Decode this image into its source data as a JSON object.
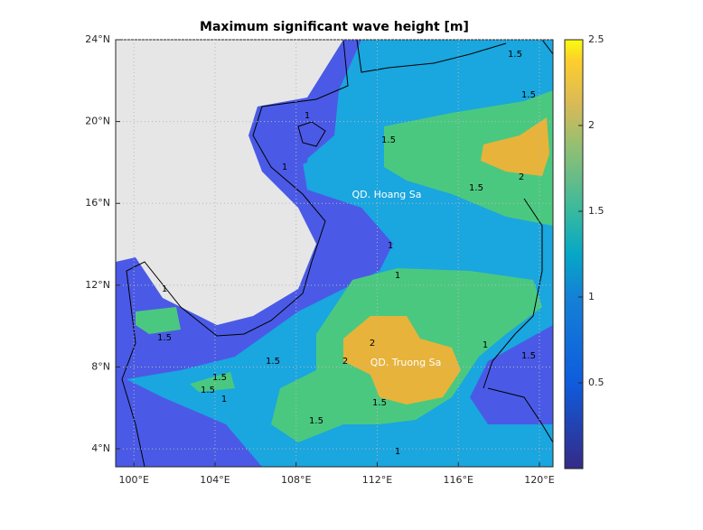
{
  "chart_data": {
    "type": "contour-map",
    "title": "Maximum significant wave height [m]",
    "xlim": [
      99.1,
      120.67
    ],
    "ylim": [
      3.12,
      24
    ],
    "xticks": [
      {
        "value": 100,
        "label": "100°E"
      },
      {
        "value": 104,
        "label": "104°E"
      },
      {
        "value": 108,
        "label": "108°E"
      },
      {
        "value": 112,
        "label": "112°E"
      },
      {
        "value": 116,
        "label": "116°E"
      },
      {
        "value": 120,
        "label": "120°E"
      }
    ],
    "yticks": [
      {
        "value": 4,
        "label": "4°N"
      },
      {
        "value": 8,
        "label": "8°N"
      },
      {
        "value": 12,
        "label": "12°N"
      },
      {
        "value": 16,
        "label": "16°N"
      },
      {
        "value": 20,
        "label": "20°N"
      },
      {
        "value": 24,
        "label": "24°N"
      }
    ],
    "grid": true,
    "colorbar": {
      "lim": [
        0,
        2.5
      ],
      "ticks": [
        0.5,
        1,
        1.5,
        2,
        2.5
      ]
    },
    "annotations": [
      "QD. Hoang Sa",
      "QD. Truong Sa"
    ],
    "contour_labels": [
      1.5,
      1,
      1.5,
      1.5,
      1,
      1.5,
      2,
      1,
      1,
      1,
      1.5,
      2,
      1.5,
      2,
      1.5,
      1.5,
      1,
      1.5,
      1.5,
      1.5,
      1,
      1
    ]
  }
}
